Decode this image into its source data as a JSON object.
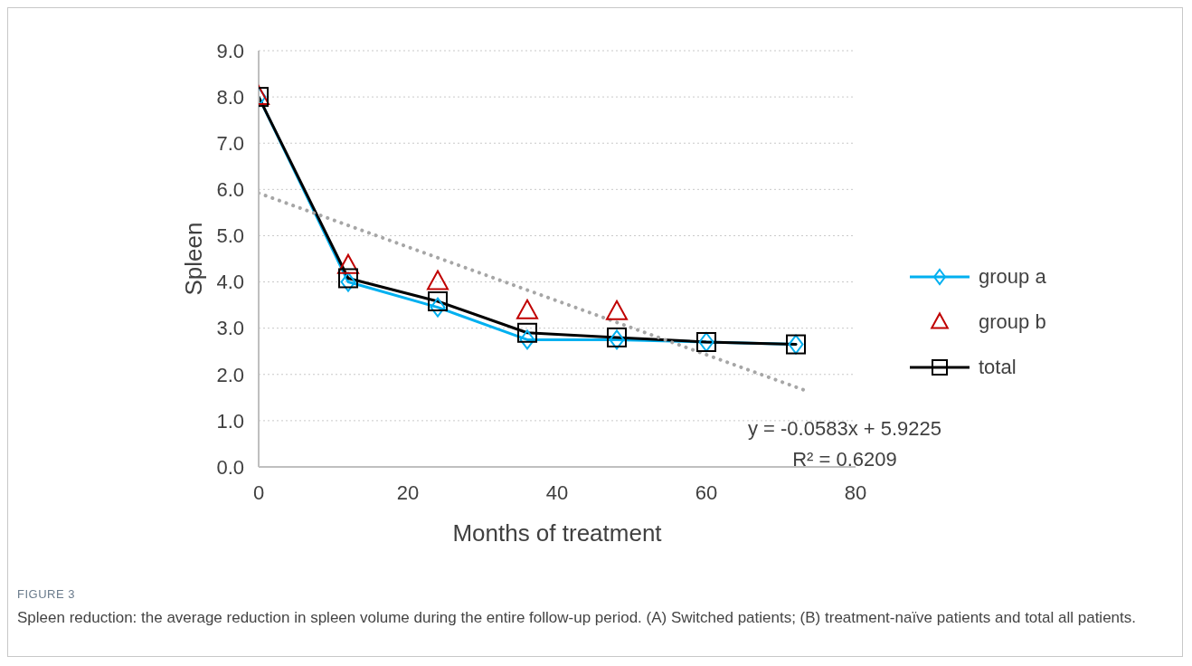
{
  "chart_data": {
    "type": "line",
    "xlabel": "Months of treatment",
    "ylabel": "Spleen",
    "x": [
      0,
      12,
      24,
      36,
      48,
      60,
      72
    ],
    "series": [
      {
        "name": "group a",
        "color": "#00b0f0",
        "marker": "diamond",
        "values": [
          8.0,
          4.0,
          3.45,
          2.75,
          2.75,
          2.7,
          2.65
        ]
      },
      {
        "name": "group b",
        "type": "scatter",
        "color": "#c00000",
        "marker": "triangle",
        "x": [
          0,
          12,
          24,
          36,
          48
        ],
        "values": [
          8.0,
          4.35,
          4.0,
          3.37,
          3.35
        ]
      },
      {
        "name": "total",
        "color": "#000000",
        "marker": "square",
        "values": [
          8.0,
          4.08,
          3.58,
          2.9,
          2.8,
          2.7,
          2.65
        ]
      },
      {
        "color": "#a6a6a6",
        "marker": "none",
        "line_style": "dotted",
        "x": [
          0,
          73
        ],
        "values": [
          5.92,
          1.67
        ]
      }
    ],
    "xlim": [
      0,
      80
    ],
    "xticks": [
      0,
      20,
      40,
      60,
      80
    ],
    "ylim": [
      0,
      9
    ],
    "yticks": [
      {
        "value": 0,
        "label": "0.0"
      },
      {
        "value": 1,
        "label": "1.0"
      },
      {
        "value": 2,
        "label": "2.0"
      },
      {
        "value": 3,
        "label": "3.0"
      },
      {
        "value": 4,
        "label": "4.0"
      },
      {
        "value": 5,
        "label": "5.0"
      },
      {
        "value": 6,
        "label": "6.0"
      },
      {
        "value": 7,
        "label": "7.0"
      },
      {
        "value": 8,
        "label": "8.0"
      },
      {
        "value": 9,
        "label": "9.0"
      }
    ],
    "grid": "y",
    "legend": "right",
    "annotations": [
      "y = -0.0583x + 5.9225",
      "R² = 0.6209",
      "FIGURE 3",
      "Spleen reduction: the average reduction in spleen volume during the entire follow-up period. (A) Switched patients; (B) treatment-naïve patients and total all patients."
    ]
  }
}
